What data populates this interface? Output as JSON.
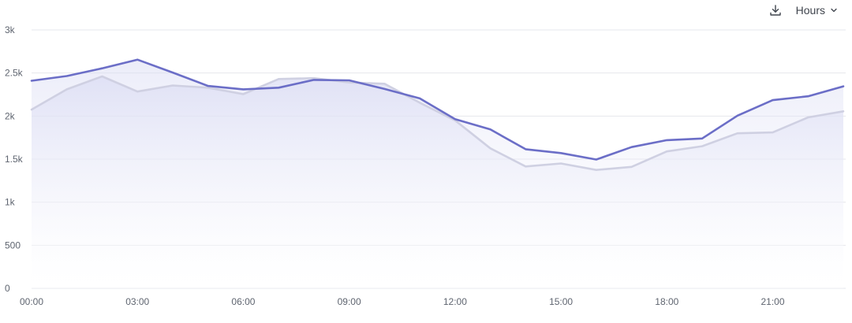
{
  "toolbar": {
    "download_icon": "download-icon",
    "granularity_label": "Hours",
    "dropdown_icon": "chevron-down-icon"
  },
  "colors": {
    "current_line": "#6b6ec7",
    "previous_line": "#cfd0e2",
    "area_top": "#d9dbf3",
    "grid": "#e6e7ec"
  },
  "chart_data": {
    "type": "area",
    "x": [
      "00:00",
      "01:00",
      "02:00",
      "03:00",
      "04:00",
      "05:00",
      "06:00",
      "07:00",
      "08:00",
      "09:00",
      "10:00",
      "11:00",
      "12:00",
      "13:00",
      "14:00",
      "15:00",
      "16:00",
      "17:00",
      "18:00",
      "19:00",
      "20:00",
      "21:00",
      "22:00",
      "23:00"
    ],
    "x_tick_labels": [
      "00:00",
      "03:00",
      "06:00",
      "09:00",
      "12:00",
      "15:00",
      "18:00",
      "21:00"
    ],
    "y_tick_labels": [
      "0",
      "500",
      "1k",
      "1.5k",
      "2k",
      "2.5k",
      "3k"
    ],
    "ylim": [
      0,
      3000
    ],
    "grid": true,
    "series": [
      {
        "values": [
          2410,
          2465,
          2555,
          2655,
          2505,
          2350,
          2310,
          2330,
          2420,
          2415,
          2315,
          2205,
          1965,
          1845,
          1615,
          1570,
          1495,
          1640,
          1720,
          1740,
          2005,
          2185,
          2230,
          2345
        ]
      },
      {
        "values": [
          2075,
          2310,
          2460,
          2285,
          2355,
          2330,
          2255,
          2430,
          2440,
          2390,
          2375,
          2155,
          1950,
          1625,
          1415,
          1450,
          1375,
          1410,
          1590,
          1650,
          1800,
          1810,
          1985,
          2055
        ]
      }
    ]
  }
}
